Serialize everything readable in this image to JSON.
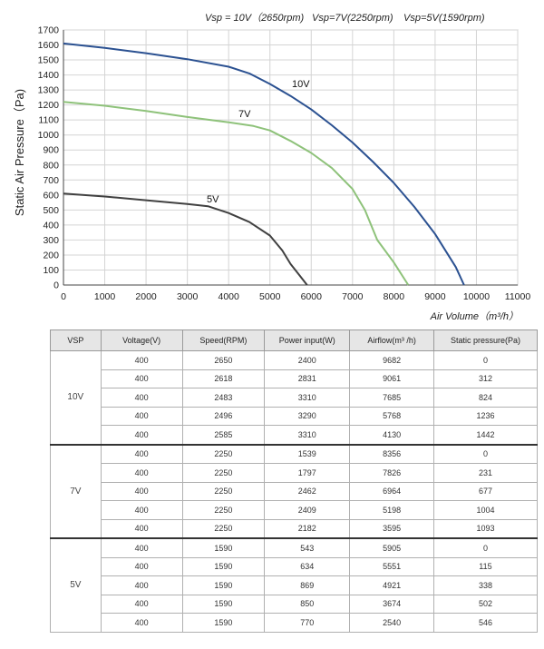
{
  "chart_data": {
    "type": "line",
    "header_items": [
      "Vsp = 10V（2650rpm)",
      "Vsp=7V(2250rpm)",
      "Vsp=5V(1590rpm)"
    ],
    "xlabel": "Air Volume（m³/h）",
    "ylabel": "Static Air Pressure（Pa)",
    "xlim": [
      0,
      11000
    ],
    "ylim": [
      0,
      1700
    ],
    "xticks": [
      0,
      1000,
      2000,
      3000,
      4000,
      5000,
      6000,
      7000,
      8000,
      9000,
      10000,
      11000
    ],
    "yticks": [
      0,
      100,
      200,
      300,
      400,
      500,
      600,
      700,
      800,
      900,
      1000,
      1100,
      1200,
      1300,
      1400,
      1500,
      1600,
      1700
    ],
    "grid": true,
    "series": [
      {
        "name": "10V",
        "color": "#2b5191",
        "x": [
          0,
          1000,
          2000,
          3000,
          4000,
          4500,
          5000,
          5500,
          6000,
          6500,
          7000,
          7500,
          8000,
          8500,
          9000,
          9500,
          9700
        ],
        "y": [
          1610,
          1580,
          1545,
          1505,
          1455,
          1410,
          1340,
          1260,
          1170,
          1065,
          950,
          820,
          680,
          520,
          340,
          120,
          0
        ]
      },
      {
        "name": "7V",
        "color": "#8ec27a",
        "x": [
          0,
          1000,
          2000,
          3000,
          4000,
          4600,
          5000,
          5500,
          6000,
          6500,
          7000,
          7300,
          7600,
          8000,
          8350
        ],
        "y": [
          1220,
          1195,
          1160,
          1120,
          1085,
          1060,
          1030,
          960,
          880,
          780,
          640,
          500,
          300,
          150,
          0
        ]
      },
      {
        "name": "5V",
        "color": "#404040",
        "x": [
          0,
          1000,
          2000,
          3000,
          3500,
          4000,
          4500,
          5000,
          5300,
          5500,
          5700,
          5900
        ],
        "y": [
          610,
          590,
          565,
          540,
          525,
          480,
          420,
          330,
          230,
          140,
          70,
          0
        ]
      }
    ]
  },
  "table": {
    "headers": [
      "VSP",
      "Voltage(V)",
      "Speed(RPM)",
      "Power input(W)",
      "Airflow(m³ /h)",
      "Static pressure(Pa)"
    ],
    "groups": [
      {
        "vsp": "10V",
        "rows": [
          [
            "400",
            "2650",
            "2400",
            "9682",
            "0"
          ],
          [
            "400",
            "2618",
            "2831",
            "9061",
            "312"
          ],
          [
            "400",
            "2483",
            "3310",
            "7685",
            "824"
          ],
          [
            "400",
            "2496",
            "3290",
            "5768",
            "1236"
          ],
          [
            "400",
            "2585",
            "3310",
            "4130",
            "1442"
          ]
        ]
      },
      {
        "vsp": "7V",
        "rows": [
          [
            "400",
            "2250",
            "1539",
            "8356",
            "0"
          ],
          [
            "400",
            "2250",
            "1797",
            "7826",
            "231"
          ],
          [
            "400",
            "2250",
            "2462",
            "6964",
            "677"
          ],
          [
            "400",
            "2250",
            "2409",
            "5198",
            "1004"
          ],
          [
            "400",
            "2250",
            "2182",
            "3595",
            "1093"
          ]
        ]
      },
      {
        "vsp": "5V",
        "rows": [
          [
            "400",
            "1590",
            "543",
            "5905",
            "0"
          ],
          [
            "400",
            "1590",
            "634",
            "5551",
            "115"
          ],
          [
            "400",
            "1590",
            "869",
            "4921",
            "338"
          ],
          [
            "400",
            "1590",
            "850",
            "3674",
            "502"
          ],
          [
            "400",
            "1590",
            "770",
            "2540",
            "546"
          ]
        ]
      }
    ]
  }
}
